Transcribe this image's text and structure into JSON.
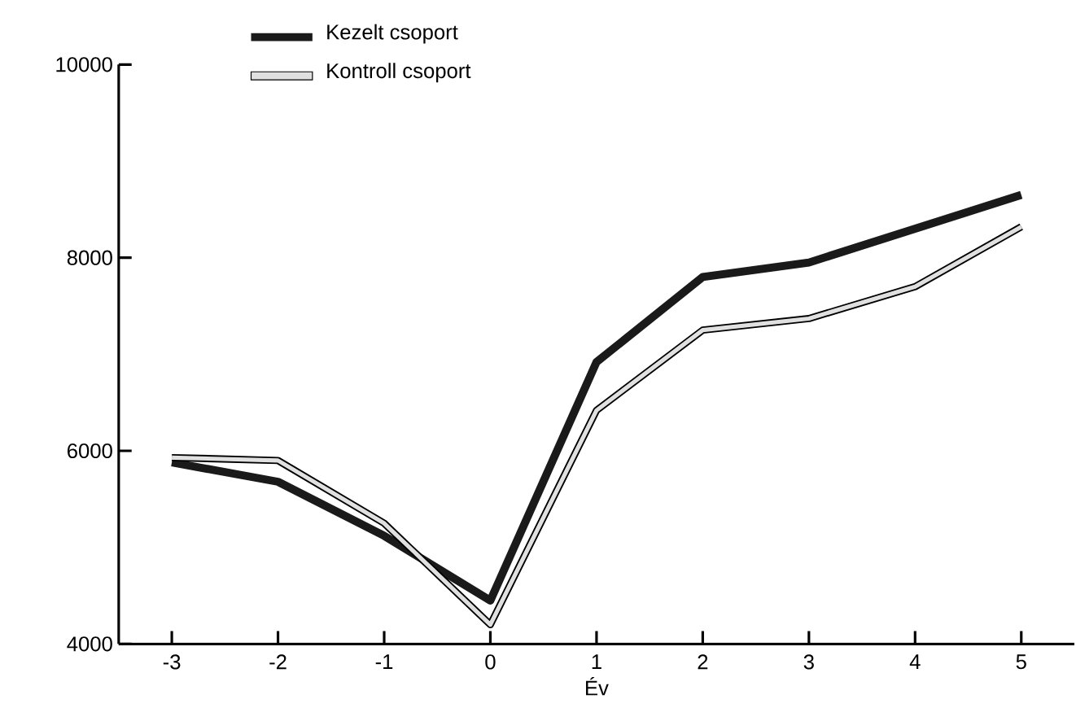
{
  "chart_data": {
    "type": "line",
    "xlabel": "Év",
    "categories": [
      "-3",
      "-2",
      "-1",
      "0",
      "1",
      "2",
      "3",
      "4",
      "5"
    ],
    "ylim": [
      4000,
      10000
    ],
    "yticks": [
      4000,
      6000,
      8000,
      10000
    ],
    "legend": "top",
    "grid": false,
    "marker": "none",
    "line_style": "solid",
    "series": [
      {
        "name": "Kezelt csoport",
        "color": "#1a1a1a",
        "values": [
          5880,
          5680,
          5120,
          4450,
          6920,
          7800,
          7950,
          8300,
          8650
        ]
      },
      {
        "name": "Kontroll csoport",
        "color": "#e0e0e0",
        "values": [
          5930,
          5900,
          5250,
          4200,
          6420,
          7250,
          7370,
          7700,
          8320
        ]
      }
    ]
  }
}
